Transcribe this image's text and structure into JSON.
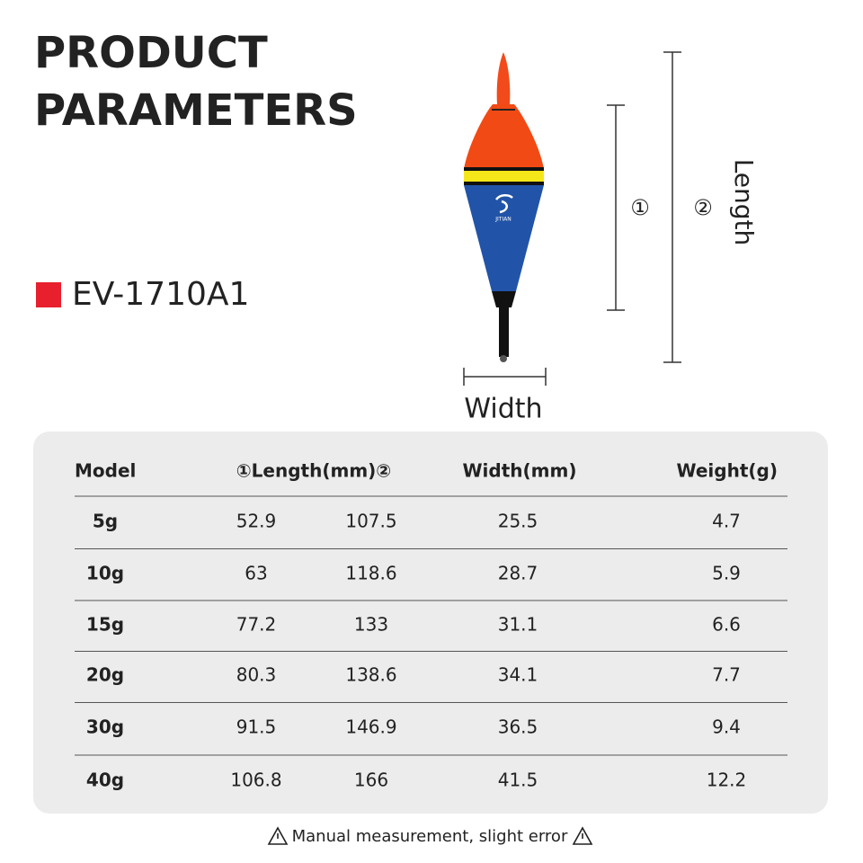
{
  "header": {
    "title_lines": [
      "PRODUCT",
      "PARAMETERS"
    ],
    "model": "EV-1710A1"
  },
  "diagram": {
    "brand": "JITIAN",
    "marker_1": "①",
    "marker_2": "②",
    "length_label": "Length",
    "width_label": "Width"
  },
  "table": {
    "header": [
      "Model",
      "①Length(mm)②",
      "Width(mm)",
      "Weight(g)"
    ],
    "rows": [
      [
        "5g",
        "52.9",
        "107.5",
        "25.5",
        "4.7"
      ],
      [
        "10g",
        "63",
        "118.6",
        "28.7",
        "5.9"
      ],
      [
        "15g",
        "77.2",
        "133",
        "31.1",
        "6.6"
      ],
      [
        "20g",
        "80.3",
        "138.6",
        "34.1",
        "7.7"
      ],
      [
        "30g",
        "91.5",
        "146.9",
        "36.5",
        "9.4"
      ],
      [
        "40g",
        "106.8",
        "166",
        "41.5",
        "12.2"
      ]
    ]
  },
  "footnote": "Manual measurement, slight error"
}
